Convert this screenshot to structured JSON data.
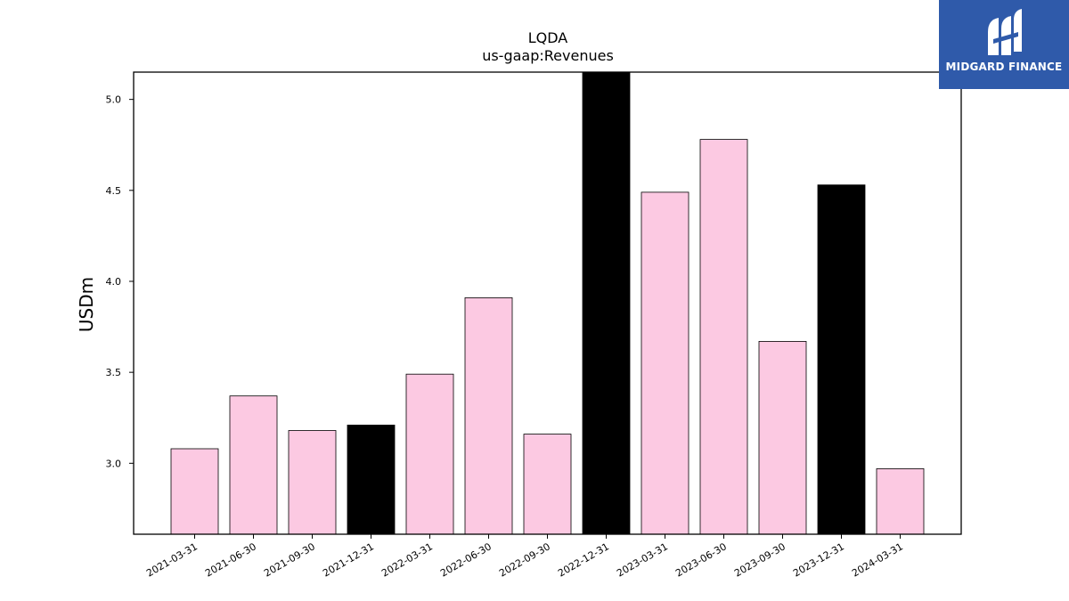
{
  "chart_data": {
    "type": "bar",
    "title": "LQDA",
    "subtitle": "us-gaap:Revenues",
    "xlabel": "",
    "ylabel": "USDm",
    "ylim": [
      2.61,
      5.15
    ],
    "yticks": [
      3.0,
      3.5,
      4.0,
      4.5,
      5.0
    ],
    "ytick_labels": [
      "3.0",
      "3.5",
      "4.0",
      "4.5",
      "5.0"
    ],
    "grid": false,
    "categories": [
      "2021-03-31",
      "2021-06-30",
      "2021-09-30",
      "2021-12-31",
      "2022-03-31",
      "2022-06-30",
      "2022-09-30",
      "2022-12-31",
      "2023-03-31",
      "2023-06-30",
      "2023-09-30",
      "2023-12-31",
      "2024-03-31"
    ],
    "values": [
      3.08,
      3.37,
      3.18,
      3.21,
      3.49,
      3.91,
      3.16,
      5.15,
      4.49,
      4.78,
      3.67,
      4.53,
      2.97
    ],
    "bar_colors": [
      "#fcc9e2",
      "#fcc9e2",
      "#fcc9e2",
      "#000000",
      "#fcc9e2",
      "#fcc9e2",
      "#fcc9e2",
      "#000000",
      "#fcc9e2",
      "#fcc9e2",
      "#fcc9e2",
      "#000000",
      "#fcc9e2"
    ],
    "colors": {
      "quarter": "#fcc9e2",
      "fiscal_year_end": "#000000",
      "edge": "#000000"
    }
  },
  "logo": {
    "text": "MIDGARD FINANCE",
    "background": "#2f5aaa",
    "icon": "midgard-logo-icon"
  }
}
